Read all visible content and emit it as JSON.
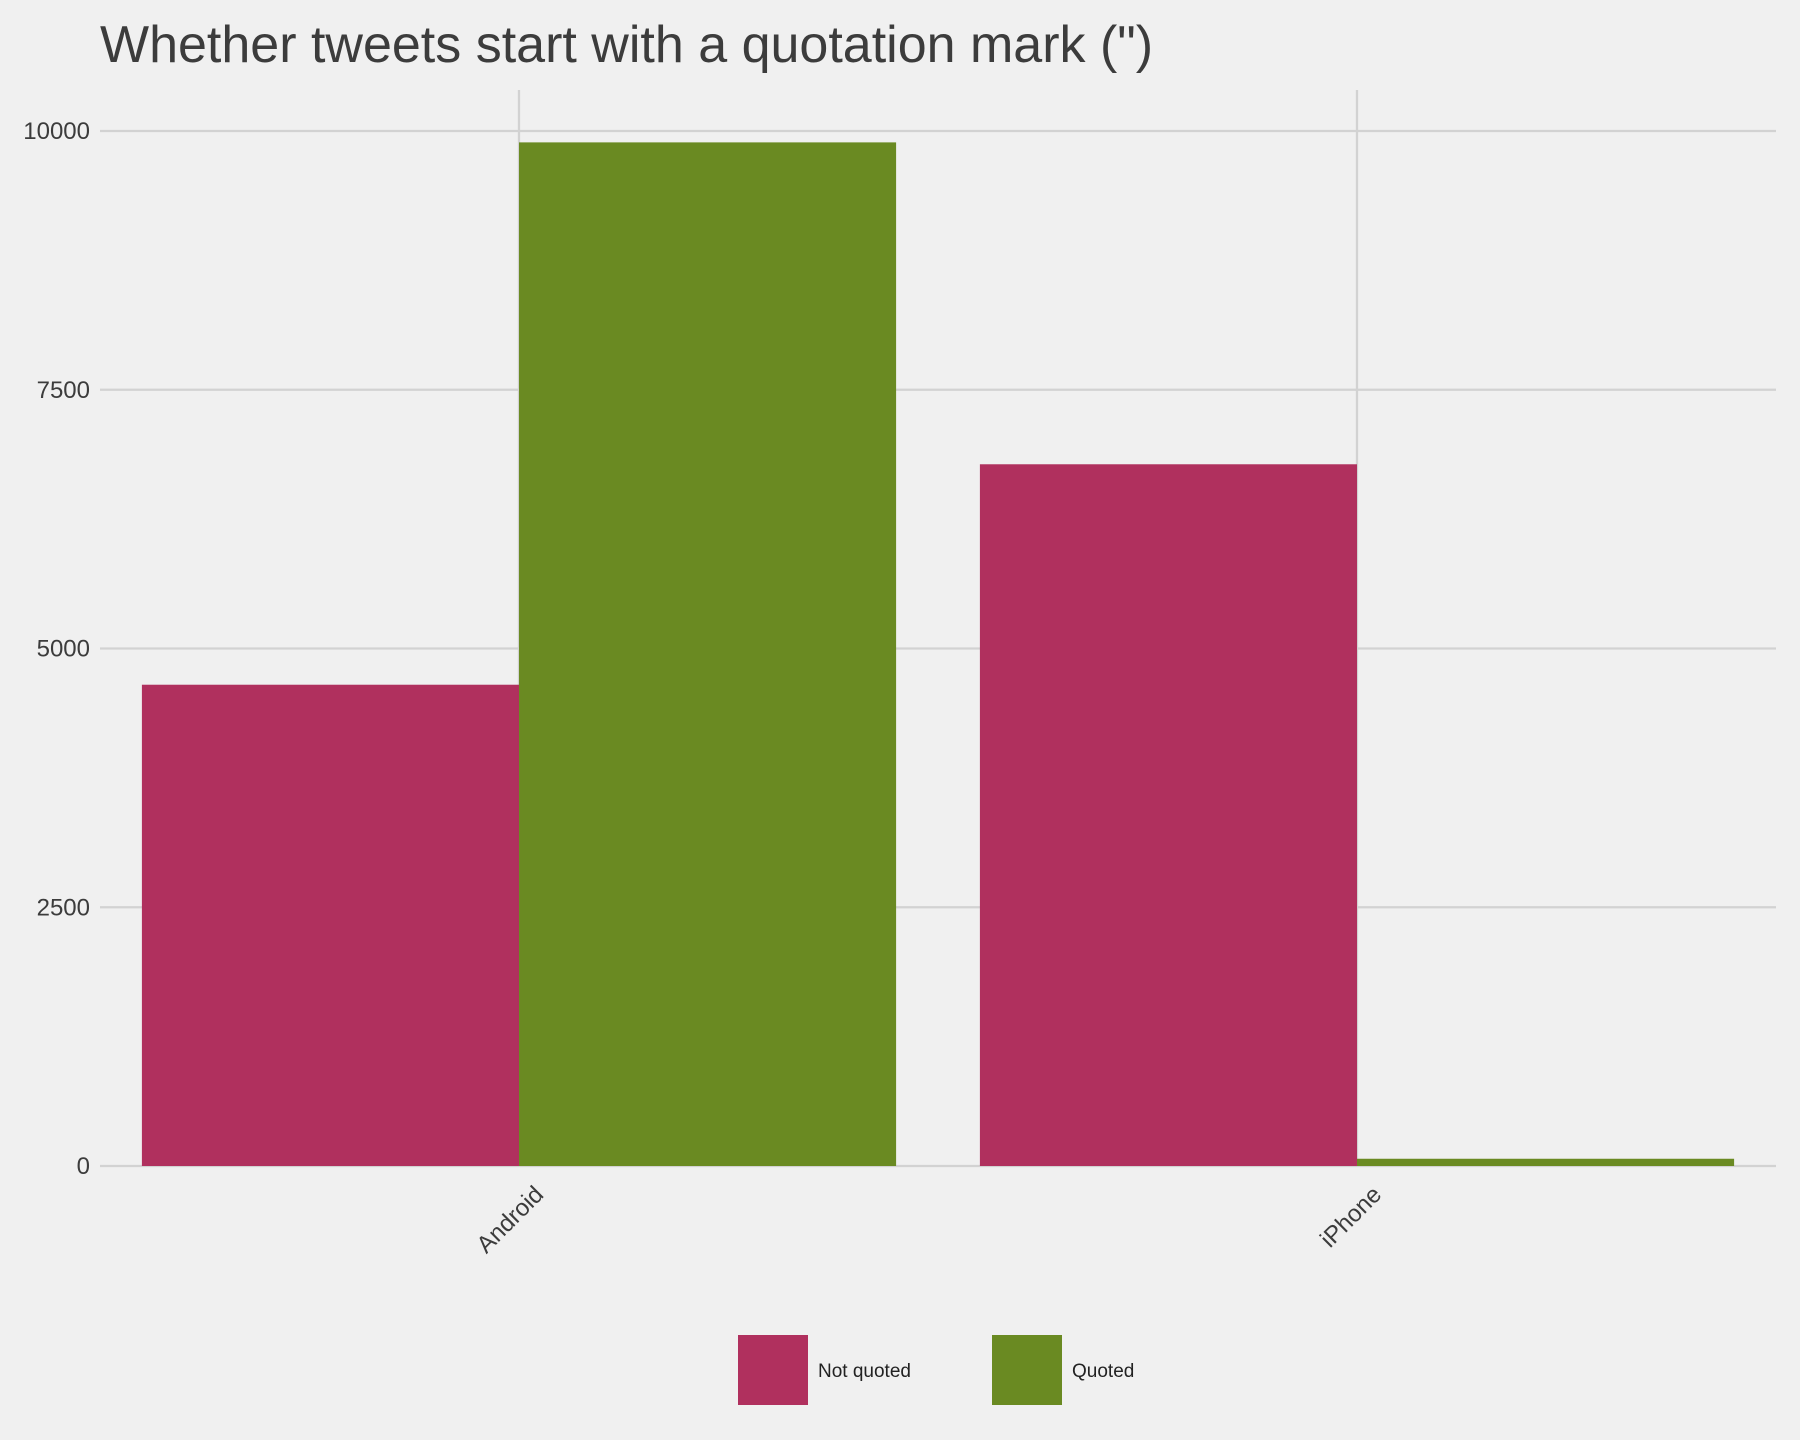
{
  "chart_data": {
    "type": "bar",
    "title": "Whether tweets start with a quotation mark (\")",
    "xlabel": "",
    "ylabel": "",
    "categories": [
      "Android",
      "iPhone"
    ],
    "series": [
      {
        "name": "Not quoted",
        "color": "#b0305e",
        "values": [
          4650,
          6780
        ]
      },
      {
        "name": "Quoted",
        "color": "#6a8a22",
        "values": [
          9890,
          70
        ]
      }
    ],
    "ylim": [
      0,
      10000
    ],
    "y_ticks": [
      0,
      2500,
      5000,
      7500,
      10000
    ],
    "y_tick_labels": [
      "0",
      "2500",
      "5000",
      "7500",
      "10000"
    ],
    "grid": true,
    "legend_position": "bottom"
  }
}
